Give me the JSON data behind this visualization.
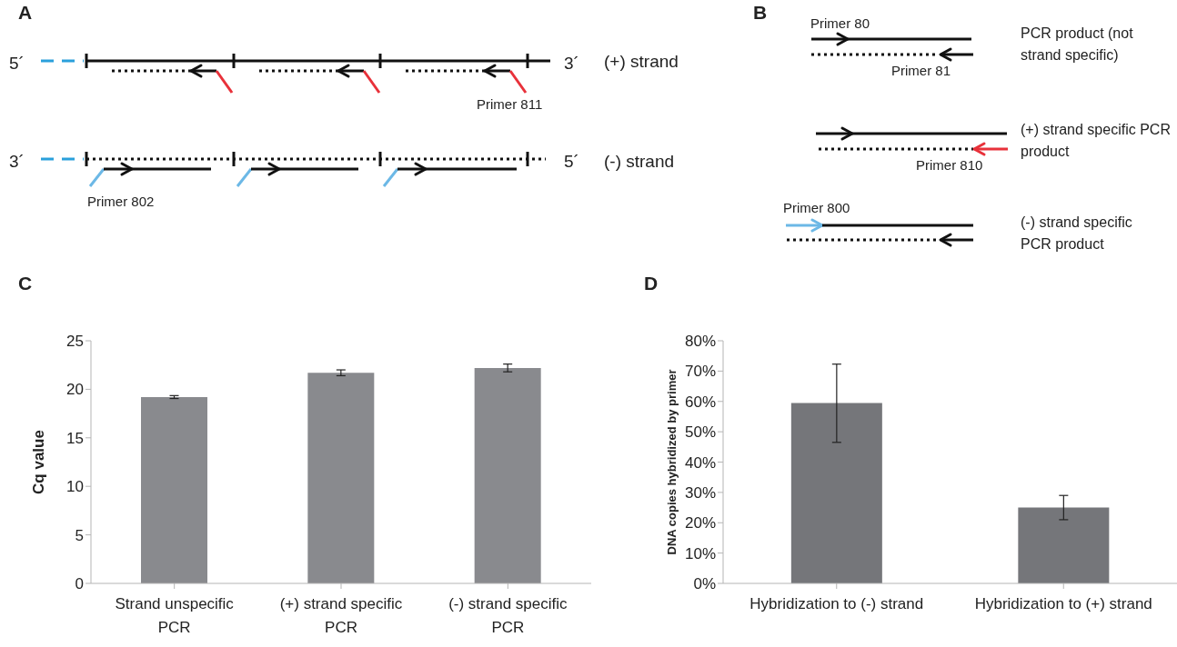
{
  "chart_data": [
    {
      "type": "other",
      "title": "A",
      "annotations": [
        "5´",
        "3´",
        "(+) strand",
        "Primer 811",
        "3´",
        "5´",
        "(-) strand",
        "Primer 802"
      ]
    },
    {
      "type": "other",
      "title": "B",
      "annotations": [
        "Primer 80",
        "Primer 81",
        "PCR product (not strand specific)",
        "(+) strand specific PCR product",
        "Primer 810",
        "Primer 800",
        "(-) strand specific PCR product"
      ]
    },
    {
      "type": "bar",
      "title": "C",
      "ylabel": "Cq value",
      "categories": [
        "Strand unspecific PCR",
        "(+) strand specific PCR",
        "(-) strand specific PCR"
      ],
      "values": [
        19.2,
        21.7,
        22.2
      ],
      "errors": [
        0.15,
        0.3,
        0.4
      ],
      "color": "#898a8e",
      "ylim": [
        0,
        25
      ],
      "yticks": [
        0,
        5,
        10,
        15,
        20,
        25
      ],
      "grid": false
    },
    {
      "type": "bar",
      "title": "D",
      "ylabel": "DNA copies hybridized by primer",
      "categories": [
        "Hybridization to (-) strand",
        "Hybridization to (+) strand"
      ],
      "values": [
        59.5,
        25
      ],
      "errors": [
        [
          46.5,
          72.3
        ],
        [
          21,
          29
        ]
      ],
      "color": "#75767a",
      "ylim": [
        0,
        80
      ],
      "yticks": [
        {
          "value": 0,
          "label": "0%"
        },
        {
          "value": 10,
          "label": "10%"
        },
        {
          "value": 20,
          "label": "20%"
        },
        {
          "value": 30,
          "label": "30%"
        },
        {
          "value": 40,
          "label": "40%"
        },
        {
          "value": 50,
          "label": "50%"
        },
        {
          "value": 60,
          "label": "60%"
        },
        {
          "value": 70,
          "label": "70%"
        },
        {
          "value": 80,
          "label": "80%"
        }
      ],
      "grid": false
    }
  ]
}
